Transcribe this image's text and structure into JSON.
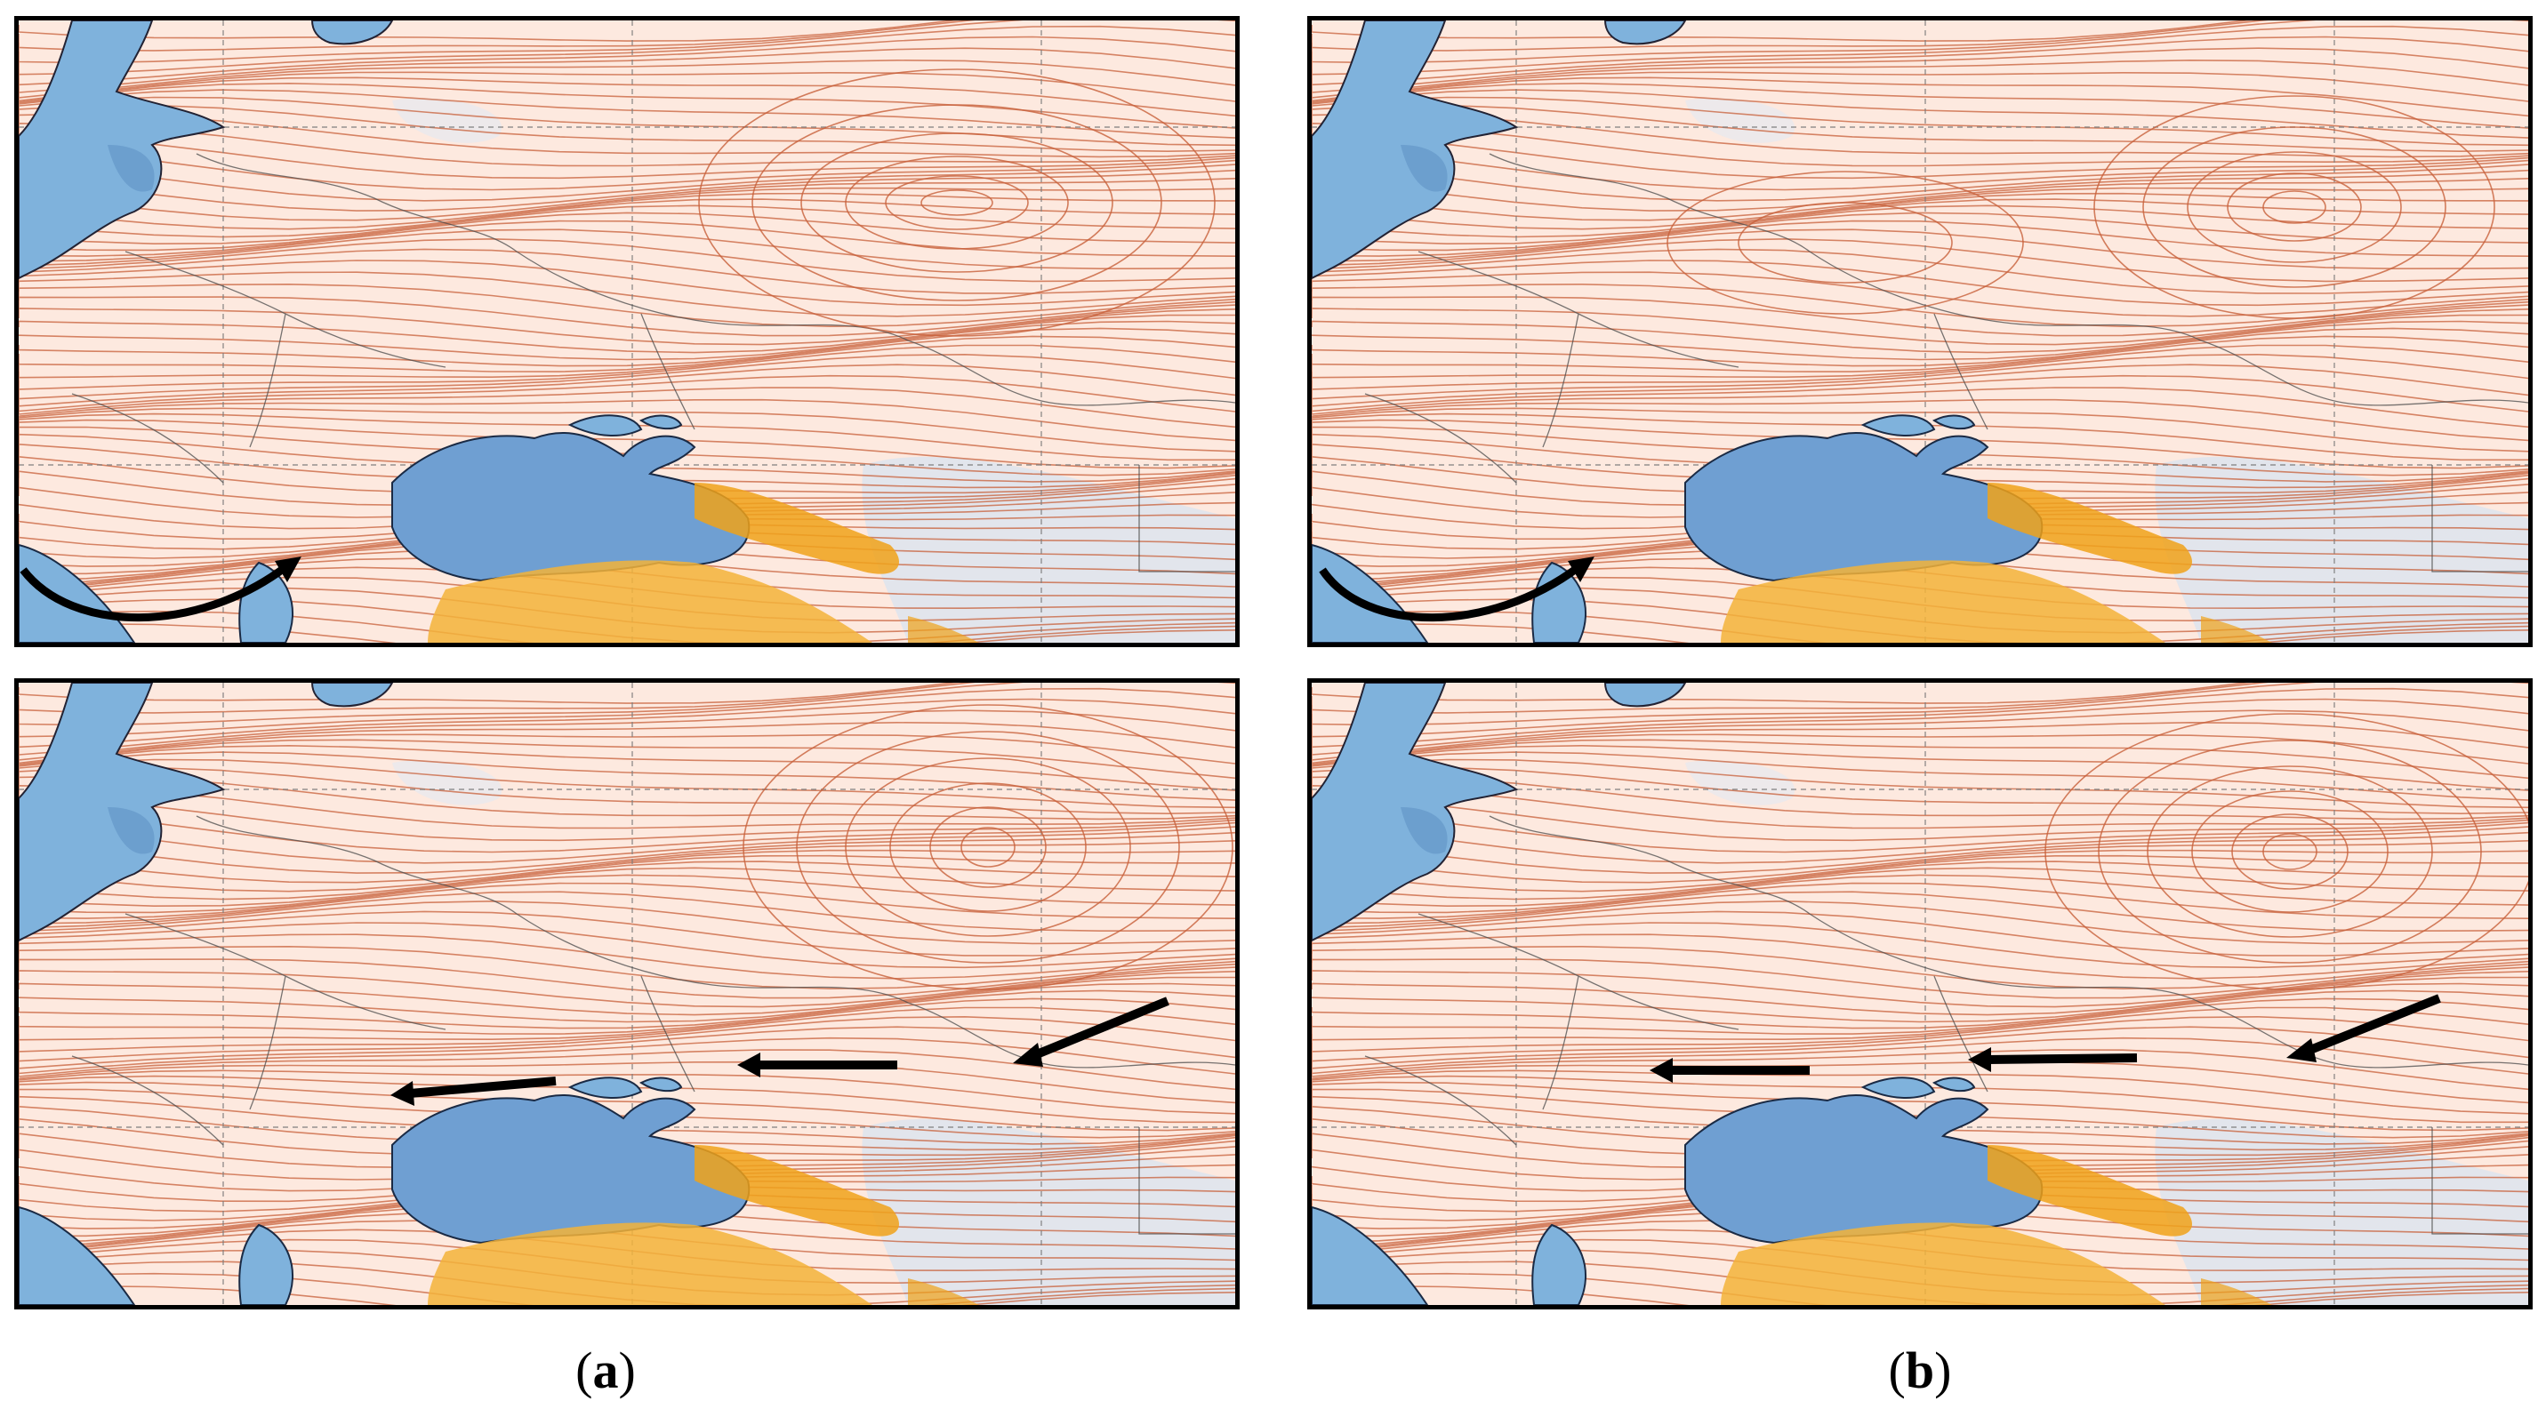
{
  "figure": {
    "captions": [
      {
        "open": "(",
        "letter": "a",
        "close": ")"
      },
      {
        "open": "(",
        "letter": "b",
        "close": ")"
      }
    ]
  },
  "colors": {
    "background": "#fde9df",
    "streamline": "#c8603a",
    "sea": "#7fb2dc",
    "sea_dark": "#5f93c4",
    "terrain": "#f0a21a",
    "graticule": "#7b7b7b",
    "arrow": "#000000"
  },
  "panels": [
    {
      "id": "a-top",
      "column": "a",
      "row": "top",
      "cyclone_center": "upper-right",
      "flow_arrows": 0,
      "curved_arrow": true
    },
    {
      "id": "b-top",
      "column": "b",
      "row": "top",
      "cyclone_center": "upper-right",
      "flow_arrows": 0,
      "curved_arrow": true
    },
    {
      "id": "a-bottom",
      "column": "a",
      "row": "bottom",
      "cyclone_center": "upper-right",
      "flow_arrows": 3,
      "curved_arrow": false
    },
    {
      "id": "b-bottom",
      "column": "b",
      "row": "bottom",
      "cyclone_center": "upper-right",
      "flow_arrows": 3,
      "curved_arrow": false
    }
  ]
}
